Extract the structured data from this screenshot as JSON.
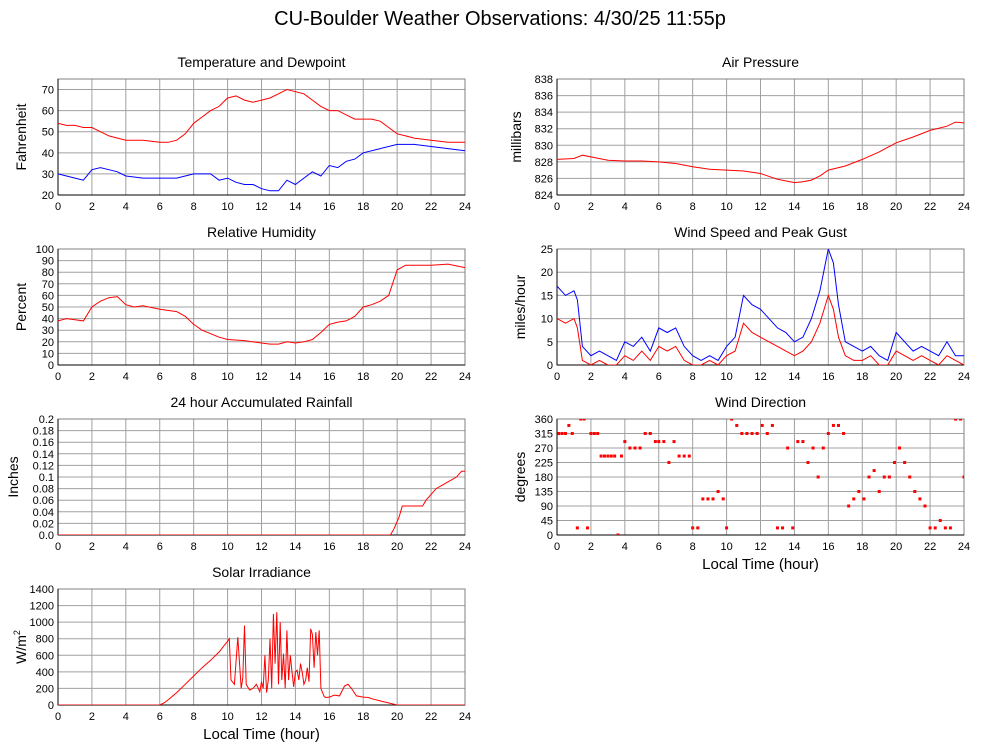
{
  "page": {
    "title": "CU-Boulder Weather Observations: 4/30/25 11:55p"
  },
  "colors": {
    "red": "#ff0000",
    "blue": "#0000ff",
    "grid": "#a0a0a0",
    "frame": "#808080"
  },
  "chart_data": [
    {
      "id": "temperature",
      "type": "line",
      "title": "Temperature and Dewpoint",
      "xlabel": "",
      "ylabel": "Fahrenheit",
      "xlim": [
        0,
        24
      ],
      "ylim": [
        20,
        75
      ],
      "xticks": [
        0,
        2,
        4,
        6,
        8,
        10,
        12,
        14,
        16,
        18,
        20,
        22,
        24
      ],
      "yticks": [
        20,
        30,
        40,
        50,
        60,
        70
      ],
      "series": [
        {
          "color": "#ff0000",
          "x": [
            0,
            0.5,
            1,
            1.5,
            2,
            2.5,
            3,
            4,
            5,
            6,
            6.5,
            7,
            7.5,
            8,
            8.5,
            9,
            9.5,
            10,
            10.5,
            11,
            11.5,
            12,
            12.5,
            13,
            13.5,
            14,
            14.5,
            15,
            15.5,
            16,
            16.5,
            17,
            17.5,
            18,
            18.5,
            19,
            19.5,
            20,
            20.5,
            21,
            22,
            23,
            24
          ],
          "y": [
            54,
            53,
            53,
            52,
            52,
            50,
            48,
            46,
            46,
            45,
            45,
            46,
            49,
            54,
            57,
            60,
            62,
            66,
            67,
            65,
            64,
            65,
            66,
            68,
            70,
            69,
            68,
            65,
            62,
            60,
            60,
            58,
            56,
            56,
            56,
            55,
            52,
            49,
            48,
            47,
            46,
            45,
            45
          ]
        },
        {
          "color": "#0000ff",
          "x": [
            0,
            0.5,
            1,
            1.5,
            2,
            2.5,
            3,
            3.5,
            4,
            5,
            6,
            7,
            8,
            8.5,
            9,
            9.5,
            10,
            10.5,
            11,
            11.5,
            12,
            12.5,
            13,
            13.5,
            14,
            14.5,
            15,
            15.5,
            16,
            16.5,
            17,
            17.5,
            18,
            19,
            20,
            21,
            22,
            23,
            24
          ],
          "y": [
            30,
            29,
            28,
            27,
            32,
            33,
            32,
            31,
            29,
            28,
            28,
            28,
            30,
            30,
            30,
            27,
            28,
            26,
            25,
            25,
            23,
            22,
            22,
            27,
            25,
            28,
            31,
            29,
            34,
            33,
            36,
            37,
            40,
            42,
            44,
            44,
            43,
            42,
            41
          ]
        }
      ]
    },
    {
      "id": "pressure",
      "type": "line",
      "title": "Air Pressure",
      "xlabel": "",
      "ylabel": "millibars",
      "xlim": [
        0,
        24
      ],
      "ylim": [
        824,
        838
      ],
      "xticks": [
        0,
        2,
        4,
        6,
        8,
        10,
        12,
        14,
        16,
        18,
        20,
        22,
        24
      ],
      "yticks": [
        824,
        826,
        828,
        830,
        832,
        834,
        836,
        838
      ],
      "series": [
        {
          "color": "#ff0000",
          "x": [
            0,
            1,
            1.5,
            2,
            3,
            4,
            5,
            6,
            7,
            8,
            9,
            10,
            11,
            12,
            13,
            14,
            14.5,
            15,
            15.5,
            16,
            17,
            18,
            19,
            20,
            21,
            22,
            23,
            23.5,
            24
          ],
          "y": [
            828.3,
            828.4,
            828.8,
            828.6,
            828.2,
            828.1,
            828.1,
            828.0,
            827.8,
            827.4,
            827.1,
            827.0,
            826.9,
            826.6,
            825.9,
            825.5,
            825.6,
            825.8,
            826.3,
            827.0,
            827.5,
            828.3,
            829.2,
            830.3,
            831.0,
            831.8,
            832.3,
            832.8,
            832.7
          ]
        }
      ]
    },
    {
      "id": "humidity",
      "type": "line",
      "title": "Relative Humidity",
      "xlabel": "",
      "ylabel": "Percent",
      "xlim": [
        0,
        24
      ],
      "ylim": [
        0,
        100
      ],
      "xticks": [
        0,
        2,
        4,
        6,
        8,
        10,
        12,
        14,
        16,
        18,
        20,
        22,
        24
      ],
      "yticks": [
        0,
        10,
        20,
        30,
        40,
        50,
        60,
        70,
        80,
        90,
        100
      ],
      "series": [
        {
          "color": "#ff0000",
          "x": [
            0,
            0.5,
            1,
            1.5,
            2,
            2.5,
            3,
            3.5,
            4,
            4.5,
            5,
            6,
            7,
            7.5,
            8,
            8.5,
            9,
            9.5,
            10,
            11,
            12,
            12.5,
            13,
            13.5,
            14,
            14.5,
            15,
            15.5,
            16,
            16.5,
            17,
            17.5,
            18,
            18.5,
            19,
            19.5,
            20,
            20.5,
            21,
            22,
            23,
            24
          ],
          "y": [
            38,
            40,
            39,
            38,
            50,
            55,
            58,
            59,
            52,
            50,
            51,
            48,
            46,
            42,
            35,
            30,
            27,
            24,
            22,
            21,
            19,
            18,
            18,
            20,
            19,
            20,
            22,
            28,
            35,
            37,
            38,
            42,
            50,
            52,
            55,
            60,
            82,
            86,
            86,
            86,
            87,
            84
          ]
        }
      ]
    },
    {
      "id": "wind",
      "type": "line",
      "title": "Wind Speed and Peak Gust",
      "xlabel": "",
      "ylabel": "miles/hour",
      "xlim": [
        0,
        24
      ],
      "ylim": [
        0,
        25
      ],
      "xticks": [
        0,
        2,
        4,
        6,
        8,
        10,
        12,
        14,
        16,
        18,
        20,
        22,
        24
      ],
      "yticks": [
        0,
        5,
        10,
        15,
        20,
        25
      ],
      "series": [
        {
          "color": "#0000ff",
          "x": [
            0,
            0.5,
            1,
            1.2,
            1.5,
            2,
            2.5,
            3,
            3.5,
            4,
            4.5,
            5,
            5.5,
            6,
            6.5,
            7,
            7.5,
            8,
            8.5,
            9,
            9.5,
            10,
            10.5,
            11,
            11.5,
            12,
            12.5,
            13,
            13.5,
            14,
            14.5,
            15,
            15.5,
            16,
            16.3,
            16.6,
            17,
            17.5,
            18,
            18.5,
            19,
            19.5,
            20,
            20.5,
            21,
            21.5,
            22,
            22.5,
            23,
            23.5,
            24
          ],
          "y": [
            17,
            15,
            16,
            14,
            4,
            2,
            3,
            2,
            1,
            5,
            4,
            6,
            3,
            8,
            7,
            8,
            4,
            2,
            1,
            2,
            1,
            4,
            6,
            15,
            13,
            12,
            10,
            8,
            7,
            5,
            6,
            10,
            16,
            25,
            22,
            13,
            5,
            4,
            3,
            4,
            2,
            1,
            7,
            5,
            3,
            4,
            3,
            2,
            5,
            2,
            2
          ]
        },
        {
          "color": "#ff0000",
          "x": [
            0,
            0.5,
            1,
            1.2,
            1.5,
            2,
            2.5,
            3,
            3.5,
            4,
            4.5,
            5,
            5.5,
            6,
            6.5,
            7,
            7.5,
            8,
            8.5,
            9,
            9.5,
            10,
            10.5,
            11,
            11.5,
            12,
            12.5,
            13,
            13.5,
            14,
            14.5,
            15,
            15.5,
            16,
            16.3,
            16.6,
            17,
            17.5,
            18,
            18.5,
            19,
            19.5,
            20,
            20.5,
            21,
            21.5,
            22,
            22.5,
            23,
            23.5,
            24
          ],
          "y": [
            10,
            9,
            10,
            8,
            1,
            0,
            1,
            0,
            0,
            2,
            1,
            3,
            1,
            4,
            3,
            4,
            1,
            0,
            0,
            1,
            0,
            2,
            3,
            9,
            7,
            6,
            5,
            4,
            3,
            2,
            3,
            5,
            9,
            15,
            12,
            6,
            2,
            1,
            1,
            2,
            0,
            0,
            3,
            2,
            1,
            2,
            1,
            0,
            2,
            1,
            0
          ]
        }
      ]
    },
    {
      "id": "rainfall",
      "type": "line",
      "title": "24 hour Accumulated Rainfall",
      "xlabel": "",
      "ylabel": "Inches",
      "xlim": [
        0,
        24
      ],
      "ylim": [
        0,
        0.2
      ],
      "xticks": [
        0,
        2,
        4,
        6,
        8,
        10,
        12,
        14,
        16,
        18,
        20,
        22,
        24
      ],
      "yticks": [
        0,
        0.02,
        0.04,
        0.06,
        0.08,
        0.1,
        0.12,
        0.14,
        0.16,
        0.18,
        0.2
      ],
      "series": [
        {
          "color": "#ff0000",
          "x": [
            0,
            19.6,
            19.8,
            20.1,
            20.3,
            21.5,
            21.7,
            22.0,
            22.3,
            22.6,
            22.9,
            23.2,
            23.5,
            23.8,
            24
          ],
          "y": [
            0,
            0,
            0.01,
            0.03,
            0.05,
            0.05,
            0.06,
            0.07,
            0.08,
            0.085,
            0.09,
            0.095,
            0.1,
            0.11,
            0.11
          ]
        }
      ]
    },
    {
      "id": "winddir",
      "type": "scatter",
      "title": "Wind Direction",
      "xlabel": "Local Time (hour)",
      "ylabel": "degrees",
      "xlim": [
        0,
        24
      ],
      "ylim": [
        0,
        360
      ],
      "xticks": [
        0,
        2,
        4,
        6,
        8,
        10,
        12,
        14,
        16,
        18,
        20,
        22,
        24
      ],
      "yticks": [
        0,
        45,
        90,
        135,
        180,
        225,
        270,
        315,
        360
      ],
      "series": [
        {
          "color": "#ff0000",
          "x": [
            0.1,
            0.3,
            0.5,
            0.7,
            0.9,
            1.2,
            1.4,
            1.6,
            1.8,
            2.0,
            2.2,
            2.4,
            2.6,
            2.8,
            3.0,
            3.2,
            3.4,
            3.6,
            3.8,
            4.0,
            4.3,
            4.6,
            4.9,
            5.2,
            5.5,
            5.8,
            6.0,
            6.3,
            6.6,
            6.9,
            7.2,
            7.5,
            7.8,
            8.0,
            8.3,
            8.6,
            8.9,
            9.2,
            9.5,
            9.8,
            10.0,
            10.3,
            10.6,
            10.9,
            11.2,
            11.5,
            11.8,
            12.1,
            12.4,
            12.7,
            13.0,
            13.3,
            13.6,
            13.9,
            14.2,
            14.5,
            14.8,
            15.1,
            15.4,
            15.7,
            16.0,
            16.3,
            16.6,
            16.9,
            17.2,
            17.5,
            17.8,
            18.1,
            18.4,
            18.7,
            19.0,
            19.3,
            19.6,
            19.9,
            20.2,
            20.5,
            20.8,
            21.1,
            21.4,
            21.7,
            22.0,
            22.3,
            22.6,
            22.9,
            23.2,
            23.5,
            23.8,
            24.0
          ],
          "y": [
            315,
            315,
            315,
            340,
            315,
            22,
            360,
            360,
            22,
            315,
            315,
            315,
            245,
            245,
            245,
            245,
            245,
            0,
            245,
            290,
            270,
            270,
            270,
            315,
            315,
            290,
            290,
            290,
            225,
            290,
            245,
            245,
            245,
            22,
            22,
            112,
            112,
            112,
            135,
            112,
            22,
            360,
            340,
            315,
            315,
            315,
            315,
            340,
            315,
            340,
            22,
            22,
            270,
            22,
            290,
            290,
            225,
            270,
            180,
            270,
            315,
            340,
            340,
            315,
            90,
            112,
            135,
            112,
            180,
            200,
            135,
            180,
            180,
            225,
            270,
            225,
            180,
            135,
            112,
            90,
            22,
            22,
            45,
            22,
            22,
            360,
            360,
            180
          ],
          "marker": "dot"
        }
      ]
    },
    {
      "id": "solar",
      "type": "line",
      "title": "Solar Irradiance",
      "xlabel": "Local Time (hour)",
      "ylabel": "W/m",
      "ylabel_sup": "2",
      "xlim": [
        0,
        24
      ],
      "ylim": [
        0,
        1400
      ],
      "xticks": [
        0,
        2,
        4,
        6,
        8,
        10,
        12,
        14,
        16,
        18,
        20,
        22,
        24
      ],
      "yticks": [
        0,
        200,
        400,
        600,
        800,
        1000,
        1200,
        1400
      ],
      "series": [
        {
          "color": "#ff0000",
          "x": [
            0,
            6.0,
            6.3,
            6.6,
            7.0,
            7.5,
            8.0,
            8.5,
            9.0,
            9.5,
            10.0,
            10.1,
            10.2,
            10.4,
            10.6,
            10.8,
            10.9,
            11.0,
            11.1,
            11.3,
            11.5,
            11.7,
            11.9,
            12.0,
            12.1,
            12.2,
            12.3,
            12.4,
            12.5,
            12.6,
            12.7,
            12.8,
            12.9,
            13.0,
            13.1,
            13.2,
            13.3,
            13.4,
            13.5,
            13.6,
            13.7,
            13.8,
            13.9,
            14.0,
            14.1,
            14.2,
            14.3,
            14.4,
            14.5,
            14.6,
            14.7,
            14.8,
            14.9,
            15.0,
            15.1,
            15.2,
            15.3,
            15.4,
            15.5,
            15.6,
            15.7,
            15.8,
            16.0,
            16.3,
            16.6,
            16.9,
            17.1,
            17.3,
            17.6,
            18.0,
            18.3,
            18.6,
            19.0,
            19.4,
            19.8,
            20.0,
            24
          ],
          "y": [
            0,
            0,
            30,
            80,
            150,
            250,
            350,
            450,
            540,
            640,
            770,
            800,
            300,
            250,
            820,
            200,
            330,
            960,
            250,
            180,
            200,
            250,
            160,
            280,
            200,
            600,
            150,
            300,
            800,
            200,
            1100,
            500,
            1120,
            250,
            1000,
            300,
            620,
            200,
            900,
            300,
            600,
            400,
            220,
            400,
            420,
            300,
            500,
            400,
            250,
            300,
            450,
            280,
            920,
            850,
            450,
            880,
            600,
            900,
            200,
            150,
            100,
            90,
            95,
            120,
            110,
            230,
            250,
            200,
            110,
            95,
            90,
            70,
            50,
            30,
            10,
            0,
            0
          ]
        }
      ]
    }
  ]
}
